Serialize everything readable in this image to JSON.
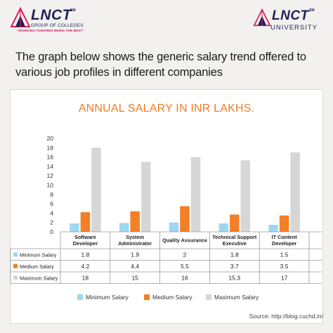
{
  "header": {
    "left_logo": {
      "brand": "LNCT",
      "line1": "GROUP OF COLLEGES",
      "tagline": "\"WORKING TOWARDS BEING THE BEST\"",
      "mark": "SM"
    },
    "right_logo": {
      "brand": "LNCT",
      "line1": "UNIVERSITY",
      "mark": "SM"
    }
  },
  "headline": "The graph below shows the generic salary trend offered to various job profiles in different companies",
  "source": "Source: http://blog.cuchd.in/",
  "colors": {
    "minimum": "#9fd6f3",
    "medium": "#f37f26",
    "maximum": "#d6d6d6",
    "title": "#f07b25",
    "brand": "#1e2157",
    "accent": "#d8215f"
  },
  "chart_data": {
    "type": "bar",
    "title": "ANNUAL SALARY IN INR LAKHS.",
    "categories": [
      "Software Developer",
      "System Administrator",
      "Quality Assurance",
      "Technical Support Executive",
      "IT Content Developer"
    ],
    "series": [
      {
        "name": "Minimum Salary",
        "values": [
          1.8,
          1.9,
          2,
          1.8,
          1.5
        ]
      },
      {
        "name": "Medium Salary",
        "values": [
          4.2,
          4.4,
          5.5,
          3.7,
          3.5
        ]
      },
      {
        "name": "Maximum Salary",
        "values": [
          18,
          15,
          16,
          15.3,
          17
        ]
      }
    ],
    "yticks": [
      0,
      2,
      4,
      6,
      8,
      10,
      12,
      14,
      16,
      18,
      20
    ],
    "ylim": [
      0,
      20
    ],
    "grid": false,
    "legend": "bottom",
    "data_table": true
  }
}
